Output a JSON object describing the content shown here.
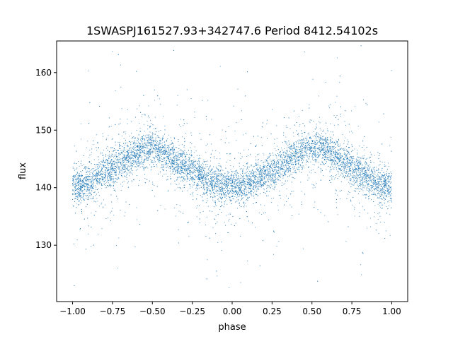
{
  "chart_data": {
    "type": "scatter",
    "title": "1SWASPJ161527.93+342747.6 Period 8412.54102s",
    "xlabel": "phase",
    "ylabel": "flux",
    "xlim": [
      -1.1,
      1.1
    ],
    "ylim": [
      120.2,
      165.5
    ],
    "x_ticks": [
      -1.0,
      -0.75,
      -0.5,
      -0.25,
      0.0,
      0.25,
      0.5,
      0.75,
      1.0
    ],
    "x_tick_labels": [
      "−1.00",
      "−0.75",
      "−0.50",
      "−0.25",
      "0.00",
      "0.25",
      "0.50",
      "0.75",
      "1.00"
    ],
    "y_ticks": [
      130,
      140,
      150,
      160
    ],
    "y_tick_labels": [
      "130",
      "140",
      "150",
      "160"
    ],
    "grid": false,
    "point_color": "#1f77b4",
    "series": [
      {
        "x": [
          -1.0,
          -0.95,
          -0.9,
          -0.85,
          -0.8,
          -0.75,
          -0.7,
          -0.65,
          -0.6,
          -0.55,
          -0.5,
          -0.45,
          -0.4,
          -0.35,
          -0.3,
          -0.25,
          -0.2,
          -0.15,
          -0.1,
          -0.05,
          0.0,
          0.05,
          0.1,
          0.15,
          0.2,
          0.25,
          0.3,
          0.35,
          0.4,
          0.45,
          0.5,
          0.55,
          0.6,
          0.65,
          0.7,
          0.75,
          0.8,
          0.85,
          0.9,
          0.95,
          1.0
        ],
        "y": [
          140.2,
          140.3,
          141.0,
          141.9,
          142.6,
          143.4,
          144.3,
          145.3,
          146.1,
          146.6,
          146.8,
          146.3,
          145.5,
          144.5,
          143.6,
          142.9,
          142.1,
          141.3,
          140.6,
          140.2,
          140.1,
          140.2,
          140.6,
          141.3,
          142.1,
          142.9,
          143.7,
          144.7,
          145.7,
          146.4,
          146.8,
          146.6,
          146.1,
          145.3,
          144.3,
          143.4,
          142.6,
          141.9,
          141.0,
          140.5,
          140.2
        ]
      }
    ]
  }
}
